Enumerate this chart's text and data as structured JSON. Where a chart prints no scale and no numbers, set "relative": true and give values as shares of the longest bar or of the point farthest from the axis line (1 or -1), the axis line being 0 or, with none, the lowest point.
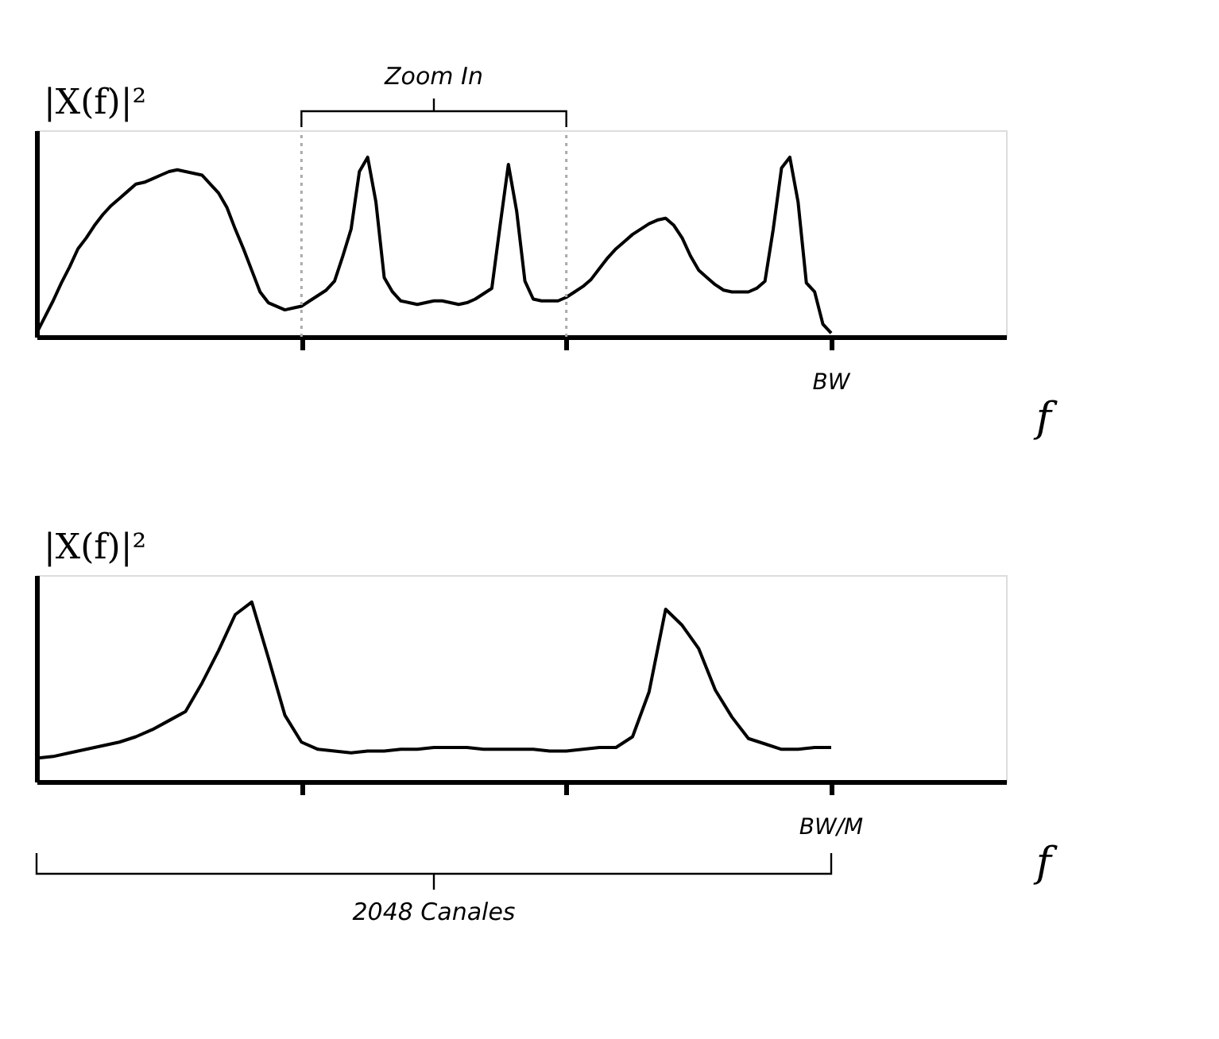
{
  "chart_data": [
    {
      "type": "line",
      "relative": true,
      "ylabel": "|X(f)|²",
      "xlabel": "f",
      "annotations": [
        "Zoom In",
        "BW"
      ],
      "grid": false,
      "marker": "none",
      "line_style": "solid",
      "categories": [
        null,
        null,
        null,
        null,
        null,
        null,
        null,
        null,
        null,
        null,
        null,
        null,
        null,
        null,
        null,
        null,
        null,
        null,
        null,
        null,
        null,
        null,
        null,
        null,
        null,
        null,
        null,
        null,
        null,
        null,
        null,
        null,
        null,
        null,
        null,
        null,
        null,
        null,
        null,
        null,
        null,
        null,
        null,
        null,
        null,
        null,
        null,
        null,
        null,
        null,
        null,
        null,
        null,
        null,
        null,
        null,
        null,
        null,
        null,
        null,
        null,
        null,
        null,
        null,
        null,
        null,
        null,
        null,
        null,
        null,
        null,
        null,
        null,
        null,
        null,
        null,
        null,
        null,
        null,
        null,
        null,
        null,
        null,
        null,
        null,
        null,
        null,
        null,
        null,
        null,
        null,
        null,
        null,
        null,
        null,
        null,
        null
      ],
      "series": [
        {
          "color": "#000000",
          "values": [
            0.02,
            0.11,
            0.2,
            0.3,
            0.39,
            0.49,
            0.55,
            0.62,
            0.68,
            0.73,
            0.77,
            0.81,
            0.85,
            0.86,
            0.88,
            0.9,
            0.92,
            0.93,
            0.92,
            0.91,
            0.9,
            0.85,
            0.8,
            0.72,
            0.6,
            0.49,
            0.37,
            0.25,
            0.19,
            0.17,
            0.15,
            0.16,
            0.17,
            0.2,
            0.23,
            0.26,
            0.31,
            0.45,
            0.6,
            0.92,
            1.0,
            0.75,
            0.33,
            0.25,
            0.2,
            0.19,
            0.18,
            0.19,
            0.2,
            0.2,
            0.19,
            0.18,
            0.19,
            0.21,
            0.24,
            0.27,
            0.62,
            0.96,
            0.7,
            0.31,
            0.21,
            0.2,
            0.2,
            0.2,
            0.22,
            0.25,
            0.28,
            0.32,
            0.38,
            0.44,
            0.49,
            0.53,
            0.57,
            0.6,
            0.63,
            0.65,
            0.66,
            0.62,
            0.55,
            0.45,
            0.37,
            0.33,
            0.29,
            0.26,
            0.25,
            0.25,
            0.25,
            0.27,
            0.31,
            0.6,
            0.94,
            1.0,
            0.75,
            0.3,
            0.25,
            0.07,
            0.02
          ]
        }
      ]
    },
    {
      "type": "line",
      "relative": true,
      "ylabel": "|X(f)|²",
      "xlabel": "f",
      "annotations": [
        "2048 Canales",
        "BW/M"
      ],
      "grid": false,
      "marker": "none",
      "line_style": "solid",
      "categories": [
        null,
        null,
        null,
        null,
        null,
        null,
        null,
        null,
        null,
        null,
        null,
        null,
        null,
        null,
        null,
        null,
        null,
        null,
        null,
        null,
        null,
        null,
        null,
        null,
        null,
        null,
        null,
        null,
        null,
        null,
        null,
        null,
        null,
        null,
        null,
        null,
        null,
        null,
        null,
        null,
        null,
        null,
        null,
        null,
        null,
        null,
        null,
        null,
        null
      ],
      "series": [
        {
          "color": "#000000",
          "values": [
            0.13,
            0.14,
            0.16,
            0.18,
            0.2,
            0.22,
            0.25,
            0.29,
            0.34,
            0.39,
            0.55,
            0.73,
            0.93,
            1.0,
            0.69,
            0.37,
            0.22,
            0.18,
            0.17,
            0.16,
            0.17,
            0.17,
            0.18,
            0.18,
            0.19,
            0.19,
            0.19,
            0.18,
            0.18,
            0.18,
            0.18,
            0.17,
            0.17,
            0.18,
            0.19,
            0.19,
            0.25,
            0.5,
            0.96,
            0.87,
            0.74,
            0.51,
            0.36,
            0.24,
            0.21,
            0.18,
            0.18,
            0.19,
            0.19
          ]
        }
      ]
    }
  ]
}
